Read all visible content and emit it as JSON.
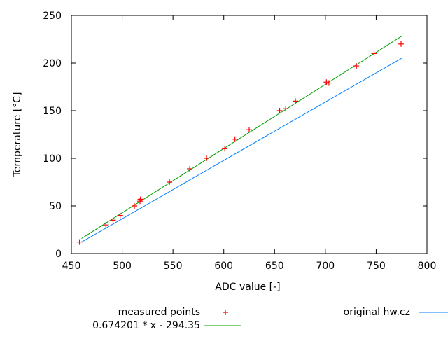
{
  "chart_data": {
    "type": "scatter",
    "xlabel": "ADC value [-]",
    "ylabel": "Temperature [°C]",
    "xlim": [
      450,
      800
    ],
    "ylim": [
      0,
      250
    ],
    "xticks": [
      450,
      500,
      550,
      600,
      650,
      700,
      750,
      800
    ],
    "yticks": [
      0,
      50,
      100,
      150,
      200,
      250
    ],
    "grid": false,
    "legend_placement": "bottom",
    "series": [
      {
        "name": "measured points",
        "type": "points",
        "marker": "plus",
        "color": "#ff0000",
        "x": [
          458,
          484,
          491,
          498,
          512,
          517.5,
          518,
          546.5,
          566.5,
          583,
          601,
          611,
          625,
          655,
          661,
          670.5,
          701,
          703.5,
          730.5,
          748,
          774.5
        ],
        "y": [
          12,
          30,
          35,
          40,
          50,
          55,
          57,
          75,
          89,
          100,
          110,
          120,
          130,
          150,
          152,
          160,
          180,
          179,
          197,
          210,
          220
        ]
      },
      {
        "name": "0.674201 * x - 294.35",
        "type": "line",
        "color": "#00a000",
        "x": [
          460,
          775
        ],
        "y": [
          15.8,
          228.2
        ]
      },
      {
        "name": "original hw.cz",
        "type": "line",
        "color": "#0080ff",
        "x": [
          460,
          775
        ],
        "y": [
          12,
          205
        ]
      }
    ]
  }
}
